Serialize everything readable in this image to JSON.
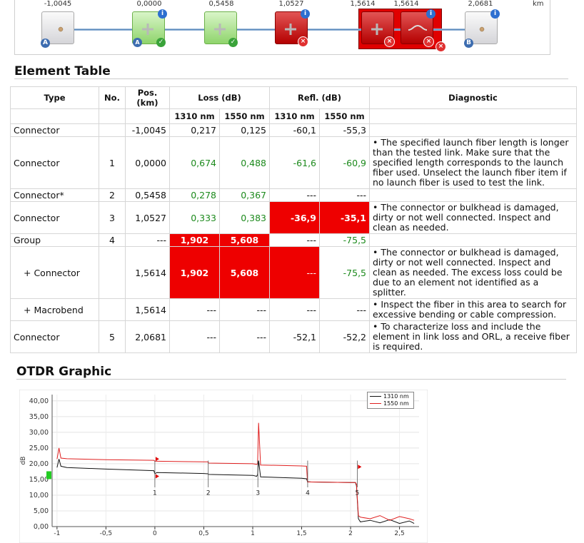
{
  "link_view": {
    "unit": "km",
    "positions": [
      "-1,0045",
      "0,0000",
      "0,5458",
      "1,0527",
      "1,5614",
      "1,5614",
      "2,0681"
    ],
    "markers": {
      "start": "A",
      "end": "B"
    }
  },
  "element_table": {
    "title": "Element Table",
    "headers": {
      "type": "Type",
      "no": "No.",
      "pos": "Pos. (km)",
      "loss": "Loss (dB)",
      "refl": "Refl. (dB)",
      "diagnostic": "Diagnostic",
      "w1310": "1310 nm",
      "w1550": "1550 nm",
      "r1310": "1310 nm",
      "r1550": "1550 nm"
    },
    "rows": [
      {
        "type": "Connector",
        "no": "",
        "pos": "-1,0045",
        "l1310": "0,217",
        "l1550": "0,125",
        "r1310": "-60,1",
        "r1550": "-55,3",
        "diag": ""
      },
      {
        "type": "Connector",
        "no": "1",
        "pos": "0,0000",
        "l1310": "0,674",
        "l1550": "0,488",
        "r1310": "-61,6",
        "r1550": "-60,9",
        "diag": "• The specified launch fiber length is longer than the tested link. Make sure that the specified length corresponds to the launch fiber used. Unselect the launch fiber item if no launch fiber is used to test the link."
      },
      {
        "type": "Connector*",
        "no": "2",
        "pos": "0,5458",
        "l1310": "0,278",
        "l1550": "0,367",
        "r1310": "---",
        "r1550": "---",
        "diag": ""
      },
      {
        "type": "Connector",
        "no": "3",
        "pos": "1,0527",
        "l1310": "0,333",
        "l1550": "0,383",
        "r1310": "-36,9",
        "r1550": "-35,1",
        "diag": "• The connector or bulkhead is damaged, dirty or not well connected. Inspect and clean as needed."
      },
      {
        "type": "Group",
        "no": "4",
        "pos": "---",
        "l1310": "1,902",
        "l1550": "5,608",
        "r1310": "---",
        "r1550": "-75,5",
        "diag": ""
      },
      {
        "type": "+ Connector",
        "no": "",
        "pos": "1,5614",
        "l1310": "1,902",
        "l1550": "5,608",
        "r1310": "---",
        "r1550": "-75,5",
        "diag": "• The connector or bulkhead is damaged, dirty or not well connected. Inspect and clean as needed. The excess loss could be due to an element not identified as a splitter."
      },
      {
        "type": "+ Macrobend",
        "no": "",
        "pos": "1,5614",
        "l1310": "---",
        "l1550": "---",
        "r1310": "---",
        "r1550": "---",
        "diag": "• Inspect the fiber in this area to search for excessive bending or cable compression."
      },
      {
        "type": "Connector",
        "no": "5",
        "pos": "2,0681",
        "l1310": "---",
        "l1550": "---",
        "r1310": "-52,1",
        "r1550": "-52,2",
        "diag": "• To characterize loss and include the element in link loss and ORL, a receive fiber is required."
      }
    ]
  },
  "otdr": {
    "title": "OTDR Graphic"
  },
  "chart_data": {
    "type": "line",
    "title": "",
    "xlabel": "",
    "ylabel": "dB",
    "ylim": [
      0,
      42
    ],
    "xlim": [
      -1.05,
      2.7
    ],
    "yticks": [
      "0,00",
      "5,00",
      "10,00",
      "15,00",
      "20,00",
      "25,00",
      "30,00",
      "35,00",
      "40,00"
    ],
    "xticks": [
      "-1",
      "-0,5",
      "0",
      "0,5",
      "1",
      "1,5",
      "2",
      "2,5"
    ],
    "legend": "top-right",
    "grid": true,
    "event_markers": [
      "1",
      "2",
      "3",
      "4",
      "5"
    ],
    "event_x": [
      0.0,
      0.5458,
      1.0527,
      1.5614,
      2.0681
    ],
    "series": [
      {
        "name": "1310 nm",
        "color": "#111111",
        "x": [
          -1.0,
          -0.98,
          -0.96,
          -0.9,
          -0.5,
          -0.01,
          0.0,
          0.02,
          0.5,
          0.54,
          0.55,
          1.0,
          1.04,
          1.05,
          1.06,
          1.08,
          1.5,
          1.55,
          1.56,
          1.6,
          2.0,
          2.05,
          2.06,
          2.08,
          2.1,
          2.2,
          2.3,
          2.4,
          2.5,
          2.6,
          2.65
        ],
        "y": [
          18.8,
          21.5,
          19.2,
          18.8,
          18.3,
          17.8,
          16.8,
          17.2,
          16.9,
          16.8,
          16.6,
          16.3,
          16.0,
          16.5,
          21.0,
          15.8,
          15.4,
          15.2,
          14.3,
          14.2,
          14.0,
          14.0,
          13.0,
          2.5,
          1.5,
          2.0,
          1.2,
          2.2,
          1.0,
          1.8,
          1.0
        ]
      },
      {
        "name": "1550 nm",
        "color": "#e02020",
        "x": [
          -1.0,
          -0.98,
          -0.96,
          -0.9,
          -0.5,
          -0.01,
          0.0,
          0.02,
          0.5,
          0.54,
          0.55,
          1.0,
          1.04,
          1.05,
          1.06,
          1.08,
          1.5,
          1.55,
          1.56,
          1.6,
          2.0,
          2.05,
          2.06,
          2.08,
          2.1,
          2.2,
          2.3,
          2.4,
          2.5,
          2.6,
          2.65
        ],
        "y": [
          21.5,
          25.0,
          21.8,
          21.6,
          21.3,
          21.1,
          20.8,
          20.8,
          20.6,
          20.6,
          20.2,
          20.0,
          19.8,
          20.0,
          33.0,
          19.6,
          19.3,
          19.2,
          14.2,
          14.2,
          14.0,
          14.0,
          13.5,
          3.5,
          3.0,
          2.5,
          3.5,
          2.0,
          3.2,
          2.5,
          2.0
        ]
      }
    ]
  }
}
